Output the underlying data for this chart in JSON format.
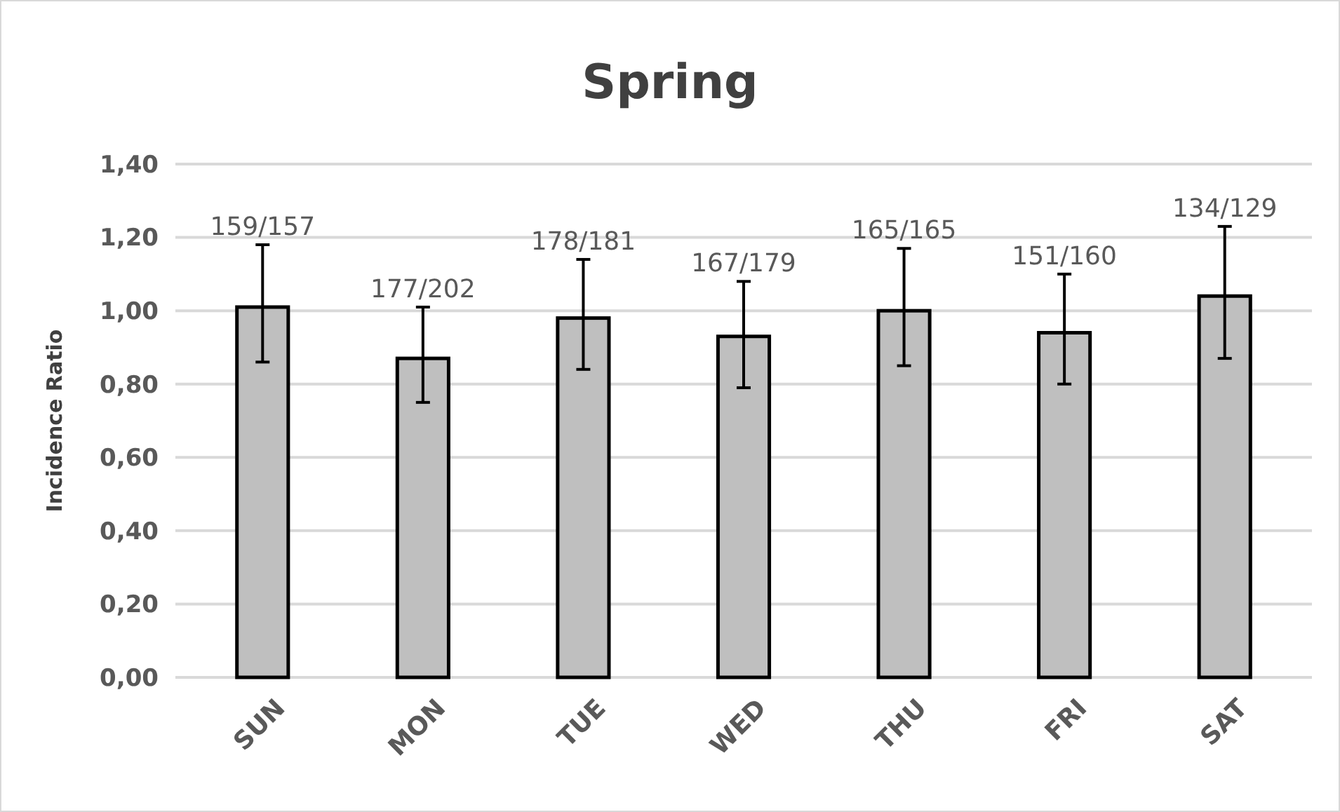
{
  "chart_data": {
    "type": "bar",
    "title": "Spring",
    "ylabel": "Incidence Ratio",
    "categories": [
      "SUN",
      "MON",
      "TUE",
      "WED",
      "THU",
      "FRI",
      "SAT"
    ],
    "values": [
      1.01,
      0.87,
      0.98,
      0.93,
      1.0,
      0.94,
      1.04
    ],
    "errors": [
      [
        0.86,
        1.18
      ],
      [
        0.75,
        1.01
      ],
      [
        0.84,
        1.14
      ],
      [
        0.79,
        1.08
      ],
      [
        0.85,
        1.17
      ],
      [
        0.8,
        1.1
      ],
      [
        0.87,
        1.23
      ]
    ],
    "value_labels": [
      "159/157",
      "177/202",
      "178/181",
      "167/179",
      "165/165",
      "151/160",
      "134/129"
    ],
    "color": "#bfbfbf",
    "ylim": [
      0,
      1.4
    ],
    "yticks": [
      {
        "value": 0,
        "label": "0,00"
      },
      {
        "value": 0.2,
        "label": "0,20"
      },
      {
        "value": 0.4,
        "label": "0,40"
      },
      {
        "value": 0.6,
        "label": "0,60"
      },
      {
        "value": 0.8,
        "label": "0,80"
      },
      {
        "value": 1.0,
        "label": "1,00"
      },
      {
        "value": 1.2,
        "label": "1,20"
      },
      {
        "value": 1.4,
        "label": "1,40"
      }
    ],
    "grid": "y"
  }
}
